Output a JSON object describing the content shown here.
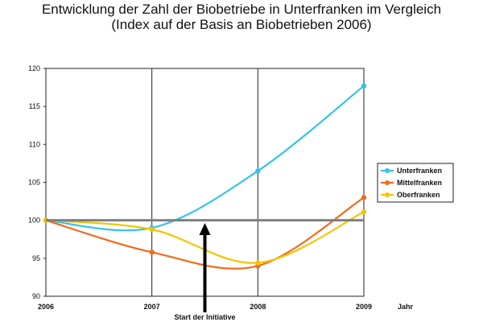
{
  "chart_data": {
    "type": "line",
    "title": "Entwicklung der Zahl der Biobetriebe in Unterfranken im Vergleich",
    "subtitle": "(Index auf der Basis an Biobetrieben 2006)",
    "xlabel": "Jahr",
    "ylabel": "",
    "x_ticks": [
      "2006",
      "2007",
      "2008",
      "2009"
    ],
    "y_ticks": [
      90,
      95,
      100,
      105,
      110,
      115,
      120
    ],
    "xlim": [
      2006,
      2009
    ],
    "ylim": [
      90,
      120
    ],
    "grid": "vertical at years",
    "legend_position": "right",
    "reference_line": {
      "y": 100,
      "color": "#808080"
    },
    "annotation": {
      "text": "Start der Initiative",
      "x": 2007.5
    },
    "series": [
      {
        "name": "Unterfranken",
        "color": "#33c3ea",
        "x": [
          2006,
          2007,
          2008,
          2009
        ],
        "values": [
          100,
          99,
          106.5,
          117.7
        ]
      },
      {
        "name": "Mittelfranken",
        "color": "#f26a1b",
        "x": [
          2006,
          2007,
          2008,
          2009
        ],
        "values": [
          100,
          95.8,
          94,
          103
        ]
      },
      {
        "name": "Oberfranken",
        "color": "#f5c400",
        "x": [
          2006,
          2007,
          2008,
          2009
        ],
        "values": [
          100,
          98.8,
          94.4,
          101.1
        ]
      }
    ]
  }
}
